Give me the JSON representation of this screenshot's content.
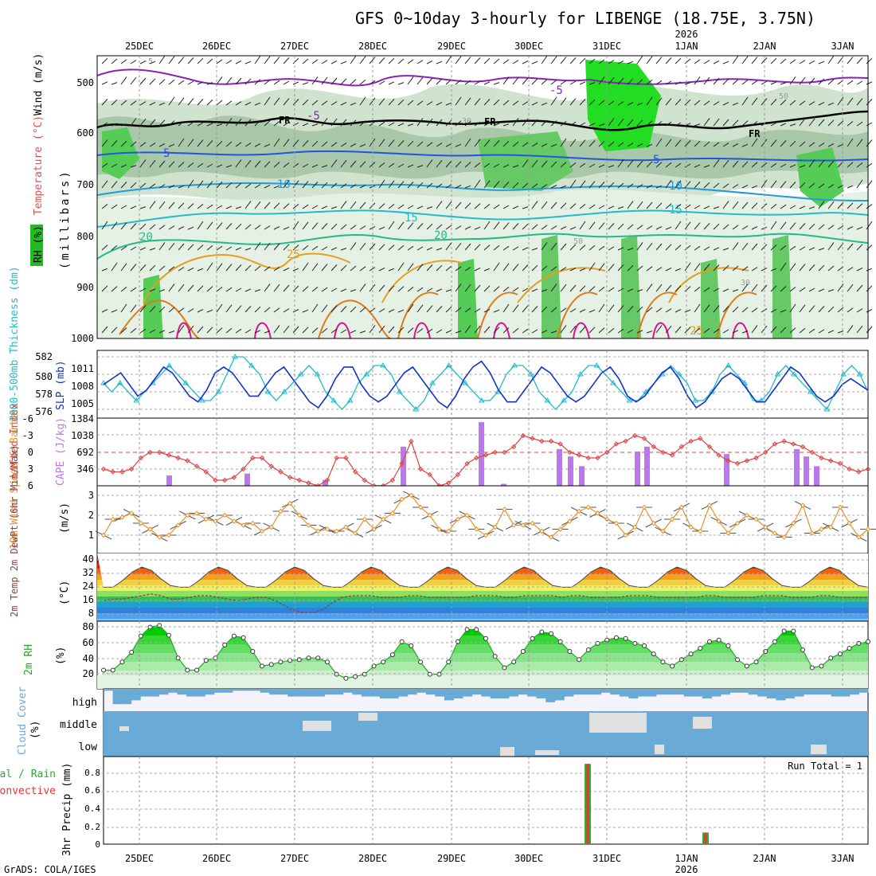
{
  "title": "GFS 0~10day 3-hourly for LIBENGE (18.75E, 3.75N)",
  "footer": "GrADS: COLA/IGES",
  "year_label": "2026",
  "date_labels": [
    "25DEC",
    "26DEC",
    "27DEC",
    "28DEC",
    "29DEC",
    "30DEC",
    "31DEC",
    "1JAN",
    "2JAN",
    "3JAN"
  ],
  "panels": {
    "upper_air": {
      "ylabel_rh": "RH (%)",
      "ylabel_temp": "Temperature (°C)",
      "ylabel_wind": "Wind (m/s)",
      "ylabel_p": "(millibars)",
      "ticks": [
        "500",
        "600",
        "700",
        "800",
        "900",
        "1000"
      ],
      "freezing_label": "FR",
      "contour_labels": [
        "-5",
        "-5",
        "-5",
        "5",
        "5",
        "10",
        "10",
        "15",
        "15",
        "20",
        "20",
        "25",
        "25",
        "30",
        "30",
        "50",
        "50"
      ]
    },
    "thickness": {
      "ylabel_thick": "1000-500mb Thickness (dm)",
      "ylabel_slp": "SLP (mb)",
      "ticks_thick": [
        "582",
        "580",
        "578",
        "576"
      ],
      "ticks_slp": [
        "1011",
        "1008",
        "1005"
      ]
    },
    "cape": {
      "ylabel_li": "Lifted Index",
      "ylabel_cape": "CAPE (J/kg)",
      "ticks_li": [
        "-6",
        "-3",
        "0",
        "3",
        "6"
      ],
      "ticks_cape": [
        "1384",
        "1038",
        "692",
        "346"
      ]
    },
    "wind10": {
      "ylabel": "10m Wind Speed & Barbs",
      "unit": "(m/s)",
      "ticks": [
        "3",
        "2",
        "1"
      ]
    },
    "temp2m": {
      "ylabel": "2m Temp 2m DewPt (6hr Min/Max)",
      "unit": "(°C)",
      "ticks": [
        "40",
        "32",
        "24",
        "16",
        "8"
      ]
    },
    "rh2m": {
      "ylabel": "2m RH",
      "unit": "(%)",
      "ticks": [
        "80",
        "60",
        "40",
        "20"
      ]
    },
    "cloud": {
      "ylabel": "Cloud Cover",
      "unit": "(%)",
      "levels": [
        "high",
        "middle",
        "low"
      ]
    },
    "precip": {
      "ylabel": "3hr Precip (mm)",
      "legend_total": "Total / Rain",
      "legend_conv": "Convective",
      "ticks": [
        "0.8",
        "0.6",
        "0.4",
        "0.2",
        "0"
      ],
      "run_total": "Run Total = 1"
    }
  },
  "colors": {
    "thickness": "#22bbcc",
    "slp": "#1133cc",
    "lifted": "#dd4444",
    "cape": "#bb77ee",
    "wind": "#e8902a",
    "rh": "#22aa22",
    "cloud": "#6aaad6",
    "precip_total": "#33aa33",
    "precip_conv": "#ee3333"
  },
  "chart_data": {
    "type": "meteogram",
    "x_unit": "days from 25DEC 00Z",
    "x_step_hours": 3,
    "thickness_dm": [
      579,
      578,
      579,
      578,
      577,
      578,
      579,
      580,
      581,
      580,
      579,
      578,
      577,
      577,
      578,
      580,
      582,
      582,
      581,
      580,
      578,
      577,
      578,
      579,
      580,
      581,
      580,
      578,
      577,
      576,
      577,
      579,
      580,
      581,
      581,
      580,
      578,
      577,
      576,
      577,
      579,
      580,
      581,
      580,
      579,
      578,
      577,
      577,
      578,
      580,
      581,
      581,
      580,
      578,
      577,
      576,
      577,
      578,
      580,
      581,
      581,
      580,
      579,
      578,
      577,
      577,
      578,
      579,
      580,
      581,
      580,
      579,
      577,
      577,
      578,
      580,
      581,
      580,
      579,
      577,
      577,
      578,
      580,
      581,
      580,
      579,
      578,
      577,
      576,
      578,
      580,
      581,
      580,
      578
    ],
    "slp_mb": [
      1008,
      1009,
      1010,
      1008,
      1006,
      1007,
      1009,
      1011,
      1010,
      1008,
      1006,
      1005,
      1007,
      1010,
      1011,
      1010,
      1008,
      1006,
      1006,
      1008,
      1010,
      1011,
      1009,
      1007,
      1005,
      1004,
      1006,
      1009,
      1011,
      1011,
      1008,
      1006,
      1005,
      1006,
      1008,
      1010,
      1011,
      1009,
      1007,
      1005,
      1004,
      1006,
      1009,
      1011,
      1012,
      1010,
      1007,
      1005,
      1005,
      1007,
      1009,
      1011,
      1010,
      1008,
      1006,
      1005,
      1006,
      1008,
      1010,
      1011,
      1009,
      1006,
      1005,
      1006,
      1008,
      1010,
      1011,
      1009,
      1006,
      1004,
      1005,
      1007,
      1009,
      1010,
      1009,
      1007,
      1005,
      1005,
      1007,
      1009,
      1011,
      1010,
      1008,
      1006,
      1005,
      1006,
      1008,
      1009,
      1008,
      1007
    ],
    "lifted_index": [
      3,
      3.5,
      3.5,
      3,
      1,
      0,
      0,
      0.5,
      1,
      1.5,
      2.5,
      3.5,
      5,
      5,
      4.5,
      3,
      1,
      1,
      2.5,
      3.5,
      4.5,
      5,
      5.5,
      6,
      5,
      1,
      1,
      3.5,
      5,
      6,
      6,
      5,
      2,
      -2,
      3,
      4,
      6,
      5.5,
      4,
      2,
      1,
      0.5,
      0,
      0,
      -1,
      -3,
      -2.5,
      -2,
      -2,
      -1.5,
      0,
      0.5,
      1,
      1,
      0,
      -1.5,
      -2,
      -3,
      -2.5,
      -1,
      0,
      0.5,
      -1,
      -2,
      -2.5,
      -1,
      0.5,
      1.5,
      2,
      1.5,
      1,
      0,
      -1.5,
      -2,
      -1.5,
      -1,
      0,
      1,
      1.5,
      2,
      3,
      3.5,
      3
    ],
    "cape_jkg": [
      0,
      0,
      0,
      0,
      0,
      0,
      0,
      0,
      200,
      0,
      0,
      0,
      0,
      0,
      0,
      0,
      0,
      0,
      250,
      0,
      0,
      0,
      0,
      0,
      0,
      0,
      0,
      0,
      0,
      0,
      0,
      0,
      0,
      0,
      120,
      0,
      0,
      0,
      0,
      0,
      0,
      0,
      0,
      0,
      0,
      0,
      0,
      0,
      0,
      0,
      0,
      0,
      0,
      0,
      0,
      0,
      0,
      0,
      0,
      0,
      0,
      0,
      0,
      0,
      0,
      0,
      0,
      0,
      0,
      0,
      0,
      0,
      0,
      0,
      0,
      0,
      0,
      0,
      0,
      0,
      0
    ],
    "wind10_ms": [
      1,
      1.8,
      1.9,
      2.1,
      1.6,
      1.3,
      0.9,
      1,
      1.5,
      2,
      2.1,
      1.8,
      1.7,
      2,
      1.7,
      1.5,
      1.6,
      1.2,
      1.4,
      2.2,
      2.6,
      2,
      1.5,
      1.2,
      1.3,
      1.2,
      1.4,
      1.1,
      1.8,
      1.3,
      1.8,
      2.1,
      2.8,
      3,
      2.4,
      2,
      1.3,
      1.2,
      1.8,
      2,
      1.3,
      1,
      1.4,
      2.3,
      1.5,
      1.5,
      1.6,
      1.2,
      0.9,
      1.3,
      1.7,
      2.2,
      2.4,
      2.1,
      1.8,
      1.6,
      1,
      1.4,
      2.4,
      1.6,
      1.2,
      1.8,
      2.4,
      1.4,
      1.2,
      2.5,
      1.7,
      1.1,
      1.6,
      2,
      1.8,
      1.4,
      1.1,
      0.9,
      1.6,
      2.5,
      1.1,
      1.3,
      1.4,
      2.4,
      1.6,
      0.9,
      1.3
    ],
    "temp2m_c": [
      22,
      22,
      26,
      31,
      34,
      32,
      27,
      23,
      22,
      22,
      26,
      31,
      34,
      32,
      27,
      23,
      22,
      22,
      26,
      31,
      34,
      32,
      27,
      23,
      22,
      22,
      26,
      31,
      34,
      32,
      27,
      23,
      22,
      22,
      26,
      31,
      34,
      32,
      27,
      23,
      22,
      22,
      26,
      31,
      34,
      32,
      27,
      23,
      22,
      22,
      26,
      31,
      34,
      32,
      27,
      23,
      22,
      22,
      26,
      31,
      34,
      32,
      27,
      23,
      22,
      22,
      26,
      31,
      34,
      32,
      27,
      23,
      22,
      22,
      26,
      31,
      34,
      32,
      27,
      23,
      22
    ],
    "dewpt2m_c": [
      14,
      15,
      15,
      16,
      17,
      18,
      17,
      15,
      15,
      16,
      17,
      17,
      16,
      15,
      14,
      15,
      16,
      16,
      14,
      11,
      8,
      7,
      7,
      9,
      13,
      16,
      17,
      17,
      17,
      16,
      16,
      16,
      17,
      17,
      16,
      16,
      16,
      16,
      16,
      17,
      17,
      17,
      16,
      16,
      17,
      17,
      17,
      17,
      16,
      17,
      17,
      16,
      16,
      16,
      16,
      17,
      17,
      17,
      16,
      16,
      16,
      16,
      16,
      17,
      17,
      16,
      16,
      16,
      16,
      17,
      17,
      17,
      16,
      16,
      16,
      17,
      17,
      16,
      16,
      16,
      16
    ],
    "rh2m_pct": [
      25,
      25,
      35,
      47,
      67,
      78,
      80,
      68,
      40,
      25,
      25,
      37,
      40,
      56,
      67,
      65,
      48,
      30,
      32,
      35,
      37,
      38,
      40,
      40,
      35,
      20,
      15,
      17,
      20,
      30,
      35,
      44,
      60,
      55,
      35,
      20,
      20,
      35,
      60,
      75,
      75,
      64,
      42,
      28,
      35,
      48,
      64,
      72,
      70,
      60,
      48,
      38,
      50,
      58,
      62,
      65,
      64,
      58,
      55,
      45,
      35,
      30,
      38,
      45,
      52,
      60,
      62,
      55,
      38,
      30,
      35,
      48,
      60,
      73,
      73,
      50,
      28,
      30,
      40,
      45,
      52,
      58,
      60
    ],
    "cloud_high_pct": [
      10,
      80,
      80,
      60,
      40,
      40,
      30,
      20,
      30,
      40,
      40,
      30,
      20,
      20,
      10,
      10,
      10,
      20,
      30,
      30,
      40,
      40,
      40,
      40,
      30,
      30,
      20,
      30,
      40,
      40,
      50,
      50,
      40,
      30,
      20,
      30,
      40,
      60,
      50,
      40,
      30,
      40,
      50,
      50,
      40,
      30,
      40,
      50,
      70,
      60,
      40,
      30,
      30,
      30,
      20,
      30,
      40,
      50,
      40,
      40,
      30,
      30,
      30,
      40,
      40,
      50,
      40,
      30,
      20,
      20,
      30,
      40,
      50,
      60,
      50,
      40,
      30,
      30,
      30,
      40,
      40,
      30,
      20
    ],
    "precip_total_mm": [
      0.9,
      0.13
    ],
    "precip_times": [
      "30DEC 18Z",
      "1JAN 06Z"
    ],
    "precip_conv_mm": [
      0.9,
      0.13
    ],
    "precip_run_total_mm": 1
  }
}
